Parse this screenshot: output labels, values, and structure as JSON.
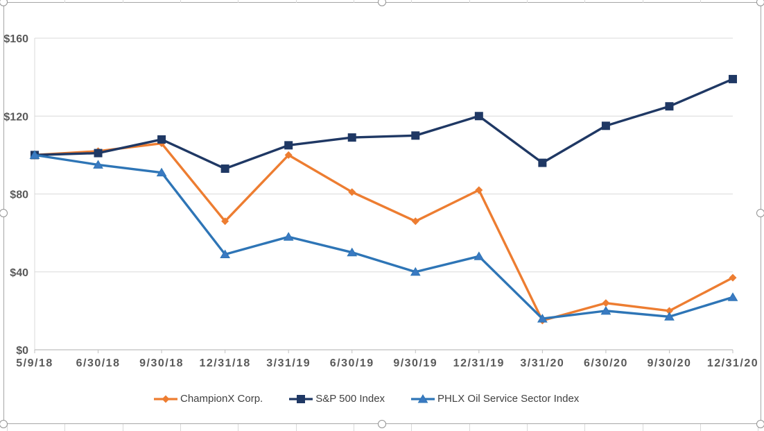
{
  "chart_data": {
    "type": "line",
    "title": "",
    "categories": [
      "5/9/18",
      "6/30/18",
      "9/30/18",
      "12/31/18",
      "3/31/19",
      "6/30/19",
      "9/30/19",
      "12/31/19",
      "3/31/20",
      "6/30/20",
      "9/30/20",
      "12/31/20"
    ],
    "series": [
      {
        "name": "ChampionX Corp.",
        "color": "#ED7D31",
        "marker": "diamond",
        "values": [
          100,
          102,
          106,
          66,
          100,
          81,
          66,
          82,
          15,
          24,
          20,
          37
        ]
      },
      {
        "name": "S&P 500 Index",
        "color": "#1F3864",
        "marker": "square",
        "values": [
          100,
          101,
          108,
          93,
          105,
          109,
          110,
          120,
          96,
          115,
          125,
          139
        ]
      },
      {
        "name": "PHLX Oil Service Sector Index",
        "color": "#2E75B6",
        "marker": "triangle",
        "marker_fill": "#3A7AC2",
        "values": [
          100,
          95,
          91,
          49,
          58,
          50,
          40,
          48,
          16,
          20,
          17,
          27
        ]
      }
    ],
    "xlabel": "",
    "ylabel": "",
    "ylim": [
      0,
      160
    ],
    "y_tick_values": [
      0,
      40,
      80,
      120,
      160
    ],
    "y_ticks": [
      "$0",
      "$40",
      "$80",
      "$120",
      "$160"
    ],
    "value_prefix": "$",
    "grid": true,
    "legend_position": "bottom",
    "theme": {
      "axis_text_color": "#595959",
      "legend_text_color": "#404040",
      "gridline_color": "#D9D9D9",
      "axis_line_color": "#BFBFBF",
      "plot_background": "#FFFFFF"
    }
  },
  "selection": {
    "object_selected": true,
    "visible_handles": [
      "top-left",
      "top-center",
      "top-right",
      "middle-left",
      "middle-right",
      "bottom-left",
      "bottom-center",
      "bottom-right"
    ]
  }
}
